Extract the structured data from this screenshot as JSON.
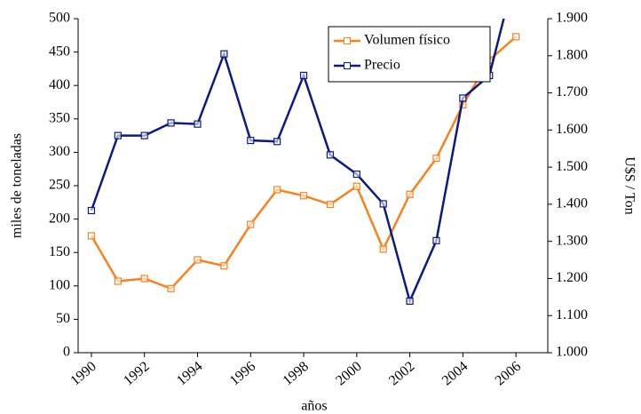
{
  "chart_data": {
    "type": "line",
    "x": [
      1990,
      1991,
      1992,
      1993,
      1994,
      1995,
      1996,
      1997,
      1998,
      1999,
      2000,
      2001,
      2002,
      2003,
      2004,
      2005,
      2006
    ],
    "xlim": [
      1989.5,
      2007.2
    ],
    "xticks": [
      1990,
      1992,
      1994,
      1996,
      1998,
      2000,
      2002,
      2004,
      2006
    ],
    "xlabel": "años",
    "ylabel": "miles de toneladas",
    "y2label": "U$S / Ton",
    "ylim": [
      0,
      500
    ],
    "yticks": [
      0,
      50,
      100,
      150,
      200,
      250,
      300,
      350,
      400,
      450,
      500
    ],
    "y2lim": [
      1000,
      1900
    ],
    "y2ticks": [
      {
        "value": 1000,
        "label": "1.000"
      },
      {
        "value": 1100,
        "label": "1.100"
      },
      {
        "value": 1200,
        "label": "1.200"
      },
      {
        "value": 1300,
        "label": "1.300"
      },
      {
        "value": 1400,
        "label": "1.400"
      },
      {
        "value": 1500,
        "label": "1.500"
      },
      {
        "value": 1600,
        "label": "1.600"
      },
      {
        "value": 1700,
        "label": "1.700"
      },
      {
        "value": 1800,
        "label": "1.800"
      },
      {
        "value": 1900,
        "label": "1.900"
      }
    ],
    "legend": "upper right",
    "series": [
      {
        "name": "Volumen físico",
        "color": "#f7821e",
        "values": [
          175,
          107,
          111,
          96,
          139,
          130,
          192,
          244,
          235,
          222,
          249,
          155,
          237,
          291,
          371,
          438,
          473
        ]
      },
      {
        "name": "Precio",
        "color": "#0d1a80",
        "axis": "y2",
        "values": [
          1383,
          1585,
          1585,
          1619,
          1616,
          1805,
          1572,
          1569,
          1747,
          1533,
          1481,
          1401,
          1139,
          1302,
          1686,
          1747,
          2030
        ]
      }
    ]
  }
}
